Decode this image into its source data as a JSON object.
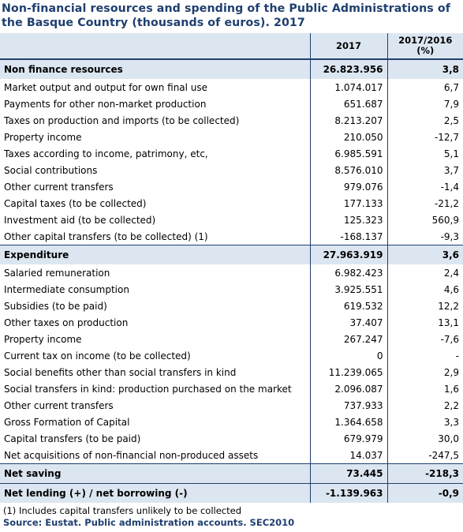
{
  "title": "Non-financial resources and spending of the Public Administrations of the Basque Country (thousands of euros). 2017",
  "columns": {
    "year": "2017",
    "change": "2017/2016 (%)"
  },
  "rows": [
    {
      "label": "Non finance resources",
      "v2017": "26.823.956",
      "chg": "3,8",
      "section": true
    },
    {
      "label": "Market output and output for own final use",
      "v2017": "1.074.017",
      "chg": "6,7"
    },
    {
      "label": "Payments for other non-market production",
      "v2017": "651.687",
      "chg": "7,9"
    },
    {
      "label": "Taxes on production and imports (to be collected)",
      "v2017": "8.213.207",
      "chg": "2,5"
    },
    {
      "label": "Property income",
      "v2017": "210.050",
      "chg": "-12,7"
    },
    {
      "label": "Taxes according to income, patrimony, etc,",
      "v2017": "6.985.591",
      "chg": "5,1"
    },
    {
      "label": "Social contributions",
      "v2017": "8.576.010",
      "chg": "3,7"
    },
    {
      "label": "Other current transfers",
      "v2017": "979.076",
      "chg": "-1,4"
    },
    {
      "label": "Capital taxes (to be collected)",
      "v2017": "177.133",
      "chg": "-21,2"
    },
    {
      "label": "Investment aid (to be collected)",
      "v2017": "125.323",
      "chg": "560,9"
    },
    {
      "label": "Other capital transfers (to be collected) (1)",
      "v2017": "-168.137",
      "chg": "-9,3"
    },
    {
      "label": "Expenditure",
      "v2017": "27.963.919",
      "chg": "3,6",
      "section": true
    },
    {
      "label": "Salaried remuneration",
      "v2017": "6.982.423",
      "chg": "2,4"
    },
    {
      "label": "Intermediate consumption",
      "v2017": "3.925.551",
      "chg": "4,6"
    },
    {
      "label": "Subsidies (to be paid)",
      "v2017": "619.532",
      "chg": "12,2"
    },
    {
      "label": "Other taxes on production",
      "v2017": "37.407",
      "chg": "13,1"
    },
    {
      "label": "Property income",
      "v2017": "267.247",
      "chg": "-7,6"
    },
    {
      "label": "Current tax on income (to be collected)",
      "v2017": "0",
      "chg": "-"
    },
    {
      "label": "Social benefits other than social transfers in kind",
      "v2017": "11.239.065",
      "chg": "2,9"
    },
    {
      "label": "Social transfers in kind: production purchased on the market",
      "v2017": "2.096.087",
      "chg": "1,6"
    },
    {
      "label": "Other current transfers",
      "v2017": "737.933",
      "chg": "2,2"
    },
    {
      "label": "Gross Formation of Capital",
      "v2017": "1.364.658",
      "chg": "3,3"
    },
    {
      "label": "Capital transfers (to be paid)",
      "v2017": "679.979",
      "chg": "30,0"
    },
    {
      "label": "Net acquisitions of non-financial non-produced assets",
      "v2017": "14.037",
      "chg": "-247,5"
    },
    {
      "label": "Net saving",
      "v2017": "73.445",
      "chg": "-218,3",
      "section": true
    },
    {
      "label": "Net lending (+) / net borrowing (-)",
      "v2017": "-1.139.963",
      "chg": "-0,9",
      "section": true
    }
  ],
  "footnote": "(1) Includes capital transfers unlikely to be collected",
  "source": "Source: Eustat. Public administration accounts. SEC2010"
}
